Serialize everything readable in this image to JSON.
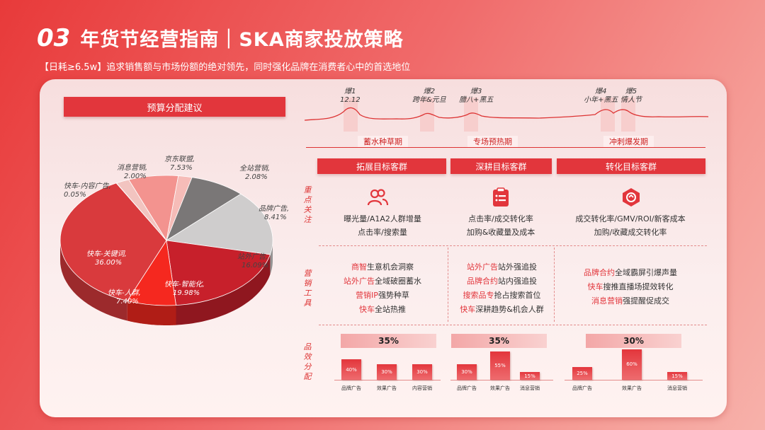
{
  "header": {
    "number": "03",
    "title": "年货节经营指南｜SKA商家投放策略",
    "subtitle": "【日耗≥6.5w】追求销售额与市场份额的绝对领先，同时强化品牌在消费者心中的首选地位"
  },
  "budget": {
    "heading": "预算分配建议",
    "slices": [
      {
        "label": "快车-关键词,",
        "value": "36.00%",
        "pct": 36.0,
        "color": "#d93a3d"
      },
      {
        "label": "快车-内容广告,",
        "value": "0.05%",
        "pct": 0.05,
        "color": "#e8b9b9"
      },
      {
        "label": "消息营销,",
        "value": "2.00%",
        "pct": 2.0,
        "color": "#f2c4c0"
      },
      {
        "label": "京东联盟,",
        "value": "7.53%",
        "pct": 7.53,
        "color": "#f3938f"
      },
      {
        "label": "全站营销,",
        "value": "2.08%",
        "pct": 2.08,
        "color": "#f6bcb8"
      },
      {
        "label": "品牌广告,",
        "value": "8.41%",
        "pct": 8.41,
        "color": "#7a7777"
      },
      {
        "label": "站外广告,",
        "value": "16.09%",
        "pct": 16.09,
        "color": "#cfcdcd"
      },
      {
        "label": "快车-智能化,",
        "value": "19.98%",
        "pct": 19.98,
        "color": "#c7202b"
      },
      {
        "label": "快车-人群,",
        "value": "7.40%",
        "pct": 7.4,
        "color": "#f5281f"
      }
    ]
  },
  "timeline": {
    "bursts": [
      {
        "name": "爆1",
        "event": "12.12"
      },
      {
        "name": "爆2",
        "event": "跨年&元旦"
      },
      {
        "name": "爆3",
        "event": "腊八+黑五"
      },
      {
        "name": "爆4",
        "event": "小年+黑五"
      },
      {
        "name": "爆5",
        "event": "情人节"
      }
    ],
    "phases": [
      "蓄水种草期",
      "专场预热期",
      "冲刺爆发期"
    ]
  },
  "columns": [
    {
      "heading": "拓展目标客群",
      "icon": "users-icon",
      "focus": [
        "曝光量/A1A2人群增量",
        "点击率/搜索量"
      ],
      "tools": [
        {
          "hl": "商智",
          "rest": "生意机会洞察"
        },
        {
          "hl": "站外广告",
          "rest": "全域破圈蓄水"
        },
        {
          "hl": "营销IP",
          "rest": "强势种草"
        },
        {
          "hl": "快车",
          "rest": "全站热推"
        }
      ],
      "total": "35%",
      "bars": [
        {
          "pct": 40,
          "label": "40%",
          "cap": "品牌广告"
        },
        {
          "pct": 30,
          "label": "30%",
          "cap": "效果广告"
        },
        {
          "pct": 30,
          "label": "30%",
          "cap": "内容营销"
        }
      ]
    },
    {
      "heading": "深耕目标客群",
      "icon": "clipboard-icon",
      "focus": [
        "点击率/成交转化率",
        "加购&收藏量及成本"
      ],
      "tools": [
        {
          "hl": "站外广告",
          "rest": "站外强追投"
        },
        {
          "hl": "品牌合约",
          "rest": "站内强追投"
        },
        {
          "hl": "搜索品专",
          "rest": "抢占搜索首位"
        },
        {
          "hl": "快车",
          "rest": "深耕趋势&机会人群"
        }
      ],
      "total": "35%",
      "bars": [
        {
          "pct": 30,
          "label": "30%",
          "cap": "品牌广告"
        },
        {
          "pct": 55,
          "label": "55%",
          "cap": "效果广告"
        },
        {
          "pct": 15,
          "label": "15%",
          "cap": "消息营销"
        }
      ]
    },
    {
      "heading": "转化目标客群",
      "icon": "conversion-icon",
      "focus": [
        "成交转化率/GMV/ROI/新客成本",
        "加购/收藏成交转化率"
      ],
      "tools": [
        {
          "hl": "品牌合约",
          "rest": "全域霸屏引爆声量"
        },
        {
          "hl": "快车",
          "rest": "搜推直播场提效转化"
        },
        {
          "hl": "消息营销",
          "rest": "强提醒促成交"
        }
      ],
      "total": "30%",
      "bars": [
        {
          "pct": 25,
          "label": "25%",
          "cap": "品牌广告"
        },
        {
          "pct": 60,
          "label": "60%",
          "cap": "效果广告"
        },
        {
          "pct": 15,
          "label": "15%",
          "cap": "消息营销"
        }
      ]
    }
  ],
  "row_labels": {
    "focus": "重点关注",
    "tools": "营销工具",
    "split": "品效分配"
  }
}
